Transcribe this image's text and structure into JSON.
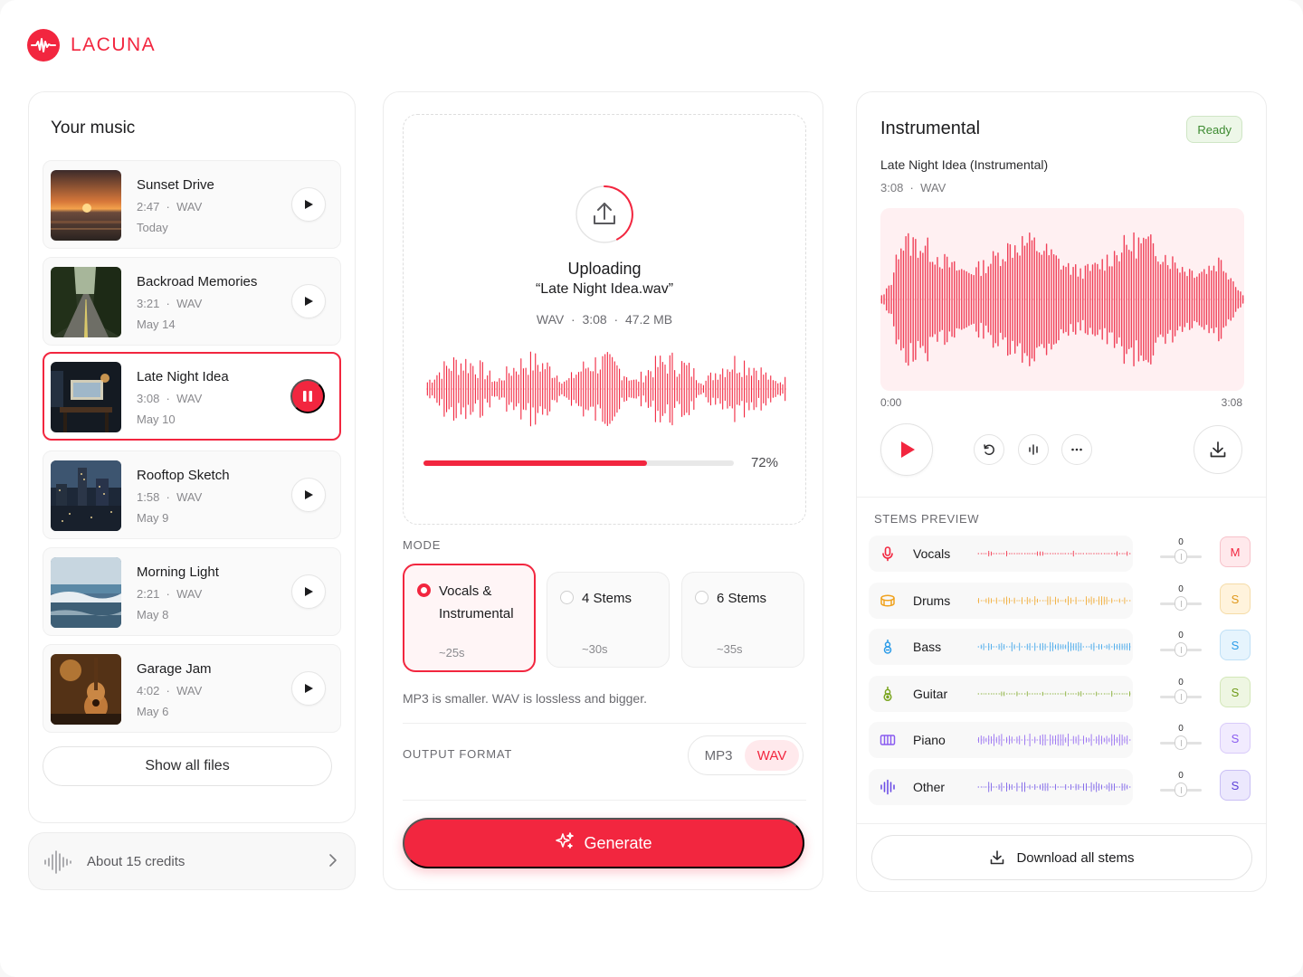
{
  "app": {
    "name": "LACUNA",
    "accent": "#f2263f"
  },
  "library": {
    "title": "Your music",
    "tracks": [
      {
        "title": "Sunset Drive",
        "duration": "2:47",
        "format": "WAV",
        "date": "Today",
        "thumb": "sunset-beach",
        "playing": false
      },
      {
        "title": "Backroad Memories",
        "duration": "3:21",
        "format": "WAV",
        "date": "May 14",
        "thumb": "forest-road",
        "playing": false
      },
      {
        "title": "Late Night Idea",
        "duration": "3:08",
        "format": "WAV",
        "date": "May 10",
        "thumb": "night-studio",
        "playing": true
      },
      {
        "title": "Rooftop Sketch",
        "duration": "1:58",
        "format": "WAV",
        "date": "May 9",
        "thumb": "city-night",
        "playing": false
      },
      {
        "title": "Morning Light",
        "duration": "2:21",
        "format": "WAV",
        "date": "May 8",
        "thumb": "ocean-waves",
        "playing": false
      },
      {
        "title": "Garage Jam",
        "duration": "4:02",
        "format": "WAV",
        "date": "May 6",
        "thumb": "guitar-room",
        "playing": false
      }
    ],
    "show_all_label": "Show all files",
    "credits_label": "About 15 credits"
  },
  "upload": {
    "status": "Uploading",
    "filename": "“Late Night Idea.wav”",
    "format": "WAV",
    "duration": "3:08",
    "size": "47.2 MB",
    "progress_percent": 72,
    "progress_label": "72%"
  },
  "mode": {
    "label": "MODE",
    "options": [
      {
        "line1": "Vocals &",
        "line2": "Instrumental",
        "time": "~25s",
        "selected": true
      },
      {
        "line1": "4 Stems",
        "line2": "",
        "time": "~30s",
        "selected": false
      },
      {
        "line1": "6 Stems",
        "line2": "",
        "time": "~35s",
        "selected": false
      }
    ]
  },
  "format": {
    "hint": "MP3 is smaller. WAV is lossless and bigger.",
    "label": "OUTPUT FORMAT",
    "options": [
      "MP3",
      "WAV"
    ],
    "selected": "WAV"
  },
  "generate_label": "Generate",
  "result": {
    "title": "Instrumental",
    "status": "Ready",
    "subtitle": "Late Night Idea (Instrumental)",
    "duration": "3:08",
    "format": "WAV",
    "time_start": "0:00",
    "time_end": "3:08"
  },
  "stems": {
    "label": "STEMS PREVIEW",
    "items": [
      {
        "name": "Vocals",
        "icon": "microphone-icon",
        "color": "#f2263f",
        "volume": "0",
        "button": "M",
        "btn_bg": "#ffe9ec",
        "btn_border": "#f7c2ca",
        "btn_color": "#f2263f"
      },
      {
        "name": "Drums",
        "icon": "drum-icon",
        "color": "#f0a21e",
        "volume": "0",
        "button": "S",
        "btn_bg": "#fff3dc",
        "btn_border": "#f5dca8",
        "btn_color": "#e0971a"
      },
      {
        "name": "Bass",
        "icon": "bass-icon",
        "color": "#2a9be8",
        "volume": "0",
        "button": "S",
        "btn_bg": "#e6f4fd",
        "btn_border": "#bfe0f6",
        "btn_color": "#2a9be8"
      },
      {
        "name": "Guitar",
        "icon": "guitar-icon",
        "color": "#7aa51f",
        "volume": "0",
        "button": "S",
        "btn_bg": "#eef6e2",
        "btn_border": "#d3e7b8",
        "btn_color": "#6e9a17"
      },
      {
        "name": "Piano",
        "icon": "piano-icon",
        "color": "#8a5cf0",
        "volume": "0",
        "button": "S",
        "btn_bg": "#f1ebfe",
        "btn_border": "#d9cbfa",
        "btn_color": "#8a5cf0"
      },
      {
        "name": "Other",
        "icon": "waveform-icon",
        "color": "#6c4ee6",
        "volume": "0",
        "button": "S",
        "btn_bg": "#ece8fd",
        "btn_border": "#c9bff5",
        "btn_color": "#5b3fd8"
      }
    ],
    "download_all_label": "Download all stems"
  }
}
